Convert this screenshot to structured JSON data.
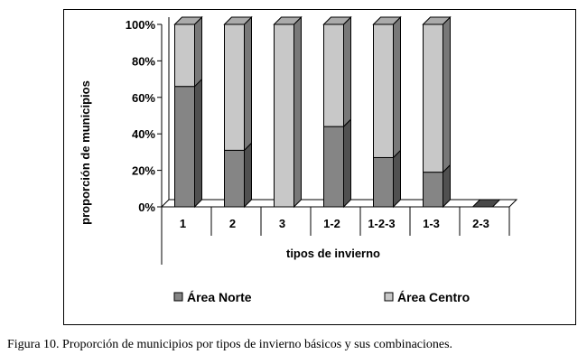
{
  "chart_data": {
    "type": "bar",
    "stacked": true,
    "percent": true,
    "categories": [
      "1",
      "2",
      "3",
      "1-2",
      "1-2-3",
      "1-3",
      "2-3"
    ],
    "series": [
      {
        "name": "Área Norte",
        "color": "#858585",
        "values": [
          66,
          31,
          0,
          44,
          27,
          19,
          0
        ]
      },
      {
        "name": "Área Centro",
        "color": "#c8c8c8",
        "values": [
          34,
          69,
          100,
          56,
          73,
          81,
          0
        ]
      }
    ],
    "xlabel": "tipos de invierno",
    "ylabel": "proporción de municipios",
    "ylim": [
      0,
      100
    ],
    "yticks": [
      "0%",
      "20%",
      "40%",
      "60%",
      "80%",
      "100%"
    ],
    "legend": "bottom"
  },
  "caption": "Figura 10. Proporción de municipios por tipos de invierno básicos y sus combinaciones."
}
